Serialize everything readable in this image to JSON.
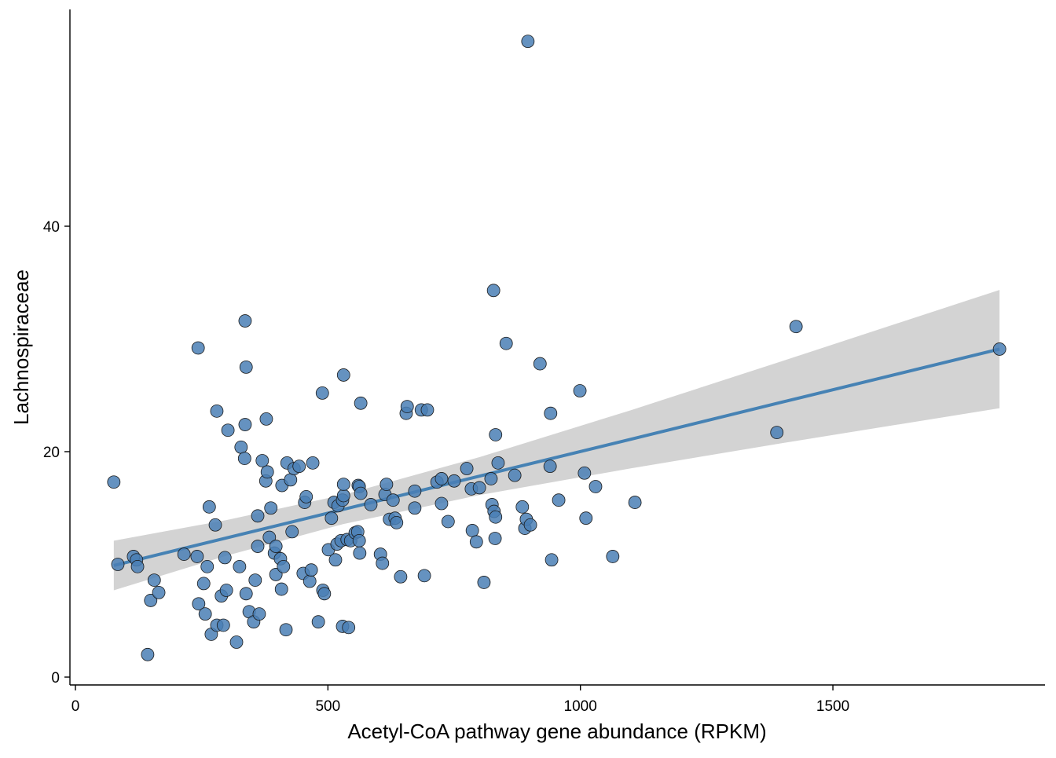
{
  "chart_data": {
    "type": "scatter",
    "title": "",
    "xlabel": "Acetyl-CoA pathway gene abundance (RPKM)",
    "ylabel": "Lachnospiraceae",
    "xlim": [
      -10,
      1920
    ],
    "ylim": [
      -0.7,
      59.2
    ],
    "xticks": [
      0,
      500,
      1000,
      1500
    ],
    "yticks": [
      0,
      20,
      40
    ],
    "xtick_labels": [
      "0",
      "500",
      "1000",
      "1500"
    ],
    "ytick_labels": [
      "0",
      "20",
      "40"
    ],
    "grid": false,
    "legend": "none",
    "colors": {
      "point_fill": "#4a7fb5",
      "point_stroke": "#1a1a1a",
      "fit_line": "#4682b4",
      "ci_band": "#d3d3d3"
    },
    "points": [
      [
        76,
        17.3
      ],
      [
        84,
        10.0
      ],
      [
        115,
        10.7
      ],
      [
        121,
        10.4
      ],
      [
        123,
        9.8
      ],
      [
        143,
        2.0
      ],
      [
        149,
        6.8
      ],
      [
        156,
        8.6
      ],
      [
        165,
        7.5
      ],
      [
        215,
        10.9
      ],
      [
        241,
        10.7
      ],
      [
        243,
        29.2
      ],
      [
        244,
        6.5
      ],
      [
        254,
        8.3
      ],
      [
        257,
        5.6
      ],
      [
        261,
        9.8
      ],
      [
        265,
        15.1
      ],
      [
        269,
        3.8
      ],
      [
        277,
        13.5
      ],
      [
        280,
        23.6
      ],
      [
        280,
        4.6
      ],
      [
        289,
        7.2
      ],
      [
        293,
        4.6
      ],
      [
        296,
        10.6
      ],
      [
        299,
        7.7
      ],
      [
        302,
        21.9
      ],
      [
        319,
        3.1
      ],
      [
        325,
        9.8
      ],
      [
        328,
        20.4
      ],
      [
        335,
        19.4
      ],
      [
        336,
        22.4
      ],
      [
        336,
        31.6
      ],
      [
        338,
        27.5
      ],
      [
        338,
        7.4
      ],
      [
        344,
        5.8
      ],
      [
        353,
        4.9
      ],
      [
        356,
        8.6
      ],
      [
        361,
        14.3
      ],
      [
        361,
        11.6
      ],
      [
        364,
        5.6
      ],
      [
        370,
        19.2
      ],
      [
        377,
        17.4
      ],
      [
        378,
        22.9
      ],
      [
        380,
        18.2
      ],
      [
        384,
        12.4
      ],
      [
        387,
        15.0
      ],
      [
        394,
        11.0
      ],
      [
        397,
        9.1
      ],
      [
        397,
        11.6
      ],
      [
        406,
        10.5
      ],
      [
        408,
        7.8
      ],
      [
        409,
        17.0
      ],
      [
        412,
        9.8
      ],
      [
        417,
        4.2
      ],
      [
        419,
        19.0
      ],
      [
        426,
        17.5
      ],
      [
        429,
        12.9
      ],
      [
        433,
        18.5
      ],
      [
        443,
        18.7
      ],
      [
        451,
        9.2
      ],
      [
        454,
        15.5
      ],
      [
        457,
        16.0
      ],
      [
        464,
        8.5
      ],
      [
        467,
        9.5
      ],
      [
        470,
        19.0
      ],
      [
        481,
        4.9
      ],
      [
        489,
        25.2
      ],
      [
        490,
        7.7
      ],
      [
        493,
        7.4
      ],
      [
        501,
        11.3
      ],
      [
        507,
        14.1
      ],
      [
        512,
        15.5
      ],
      [
        515,
        10.4
      ],
      [
        518,
        11.8
      ],
      [
        520,
        15.2
      ],
      [
        526,
        12.1
      ],
      [
        529,
        15.7
      ],
      [
        529,
        4.5
      ],
      [
        531,
        16.1
      ],
      [
        531,
        17.1
      ],
      [
        531,
        26.8
      ],
      [
        538,
        12.2
      ],
      [
        541,
        4.4
      ],
      [
        545,
        12.1
      ],
      [
        554,
        12.8
      ],
      [
        559,
        12.9
      ],
      [
        560,
        17.0
      ],
      [
        562,
        16.9
      ],
      [
        562,
        12.1
      ],
      [
        563,
        11.0
      ],
      [
        565,
        16.3
      ],
      [
        565,
        24.3
      ],
      [
        585,
        15.3
      ],
      [
        604,
        10.9
      ],
      [
        608,
        10.1
      ],
      [
        613,
        16.2
      ],
      [
        616,
        17.1
      ],
      [
        622,
        14.0
      ],
      [
        629,
        15.7
      ],
      [
        633,
        14.1
      ],
      [
        636,
        13.7
      ],
      [
        644,
        8.9
      ],
      [
        655,
        23.4
      ],
      [
        657,
        24.0
      ],
      [
        672,
        15.0
      ],
      [
        672,
        16.5
      ],
      [
        685,
        23.7
      ],
      [
        691,
        9.0
      ],
      [
        697,
        23.7
      ],
      [
        716,
        17.3
      ],
      [
        725,
        17.6
      ],
      [
        725,
        15.4
      ],
      [
        738,
        13.8
      ],
      [
        750,
        17.4
      ],
      [
        775,
        18.5
      ],
      [
        784,
        16.7
      ],
      [
        786,
        13.0
      ],
      [
        794,
        12.0
      ],
      [
        800,
        16.8
      ],
      [
        809,
        8.4
      ],
      [
        823,
        17.6
      ],
      [
        825,
        15.3
      ],
      [
        828,
        34.3
      ],
      [
        829,
        14.7
      ],
      [
        831,
        12.3
      ],
      [
        832,
        21.5
      ],
      [
        832,
        14.2
      ],
      [
        837,
        19.0
      ],
      [
        853,
        29.6
      ],
      [
        870,
        17.9
      ],
      [
        885,
        15.1
      ],
      [
        890,
        13.2
      ],
      [
        893,
        14.0
      ],
      [
        896,
        56.4
      ],
      [
        901,
        13.5
      ],
      [
        920,
        27.8
      ],
      [
        940,
        18.7
      ],
      [
        941,
        23.4
      ],
      [
        943,
        10.4
      ],
      [
        957,
        15.7
      ],
      [
        999,
        25.4
      ],
      [
        1008,
        18.1
      ],
      [
        1011,
        14.1
      ],
      [
        1030,
        16.9
      ],
      [
        1064,
        10.7
      ],
      [
        1108,
        15.5
      ],
      [
        1389,
        21.7
      ],
      [
        1427,
        31.1
      ],
      [
        1830,
        29.1
      ]
    ],
    "fit": {
      "method": "lm",
      "x": [
        76,
        300,
        530,
        800,
        1100,
        1400,
        1830
      ],
      "y": [
        9.9,
        12.36,
        14.87,
        17.83,
        21.1,
        24.4,
        29.1
      ],
      "ymin": [
        7.7,
        10.78,
        13.57,
        16.15,
        18.52,
        20.76,
        23.85
      ],
      "ymax": [
        12.1,
        13.94,
        16.17,
        19.51,
        23.68,
        28.04,
        34.35
      ]
    }
  }
}
